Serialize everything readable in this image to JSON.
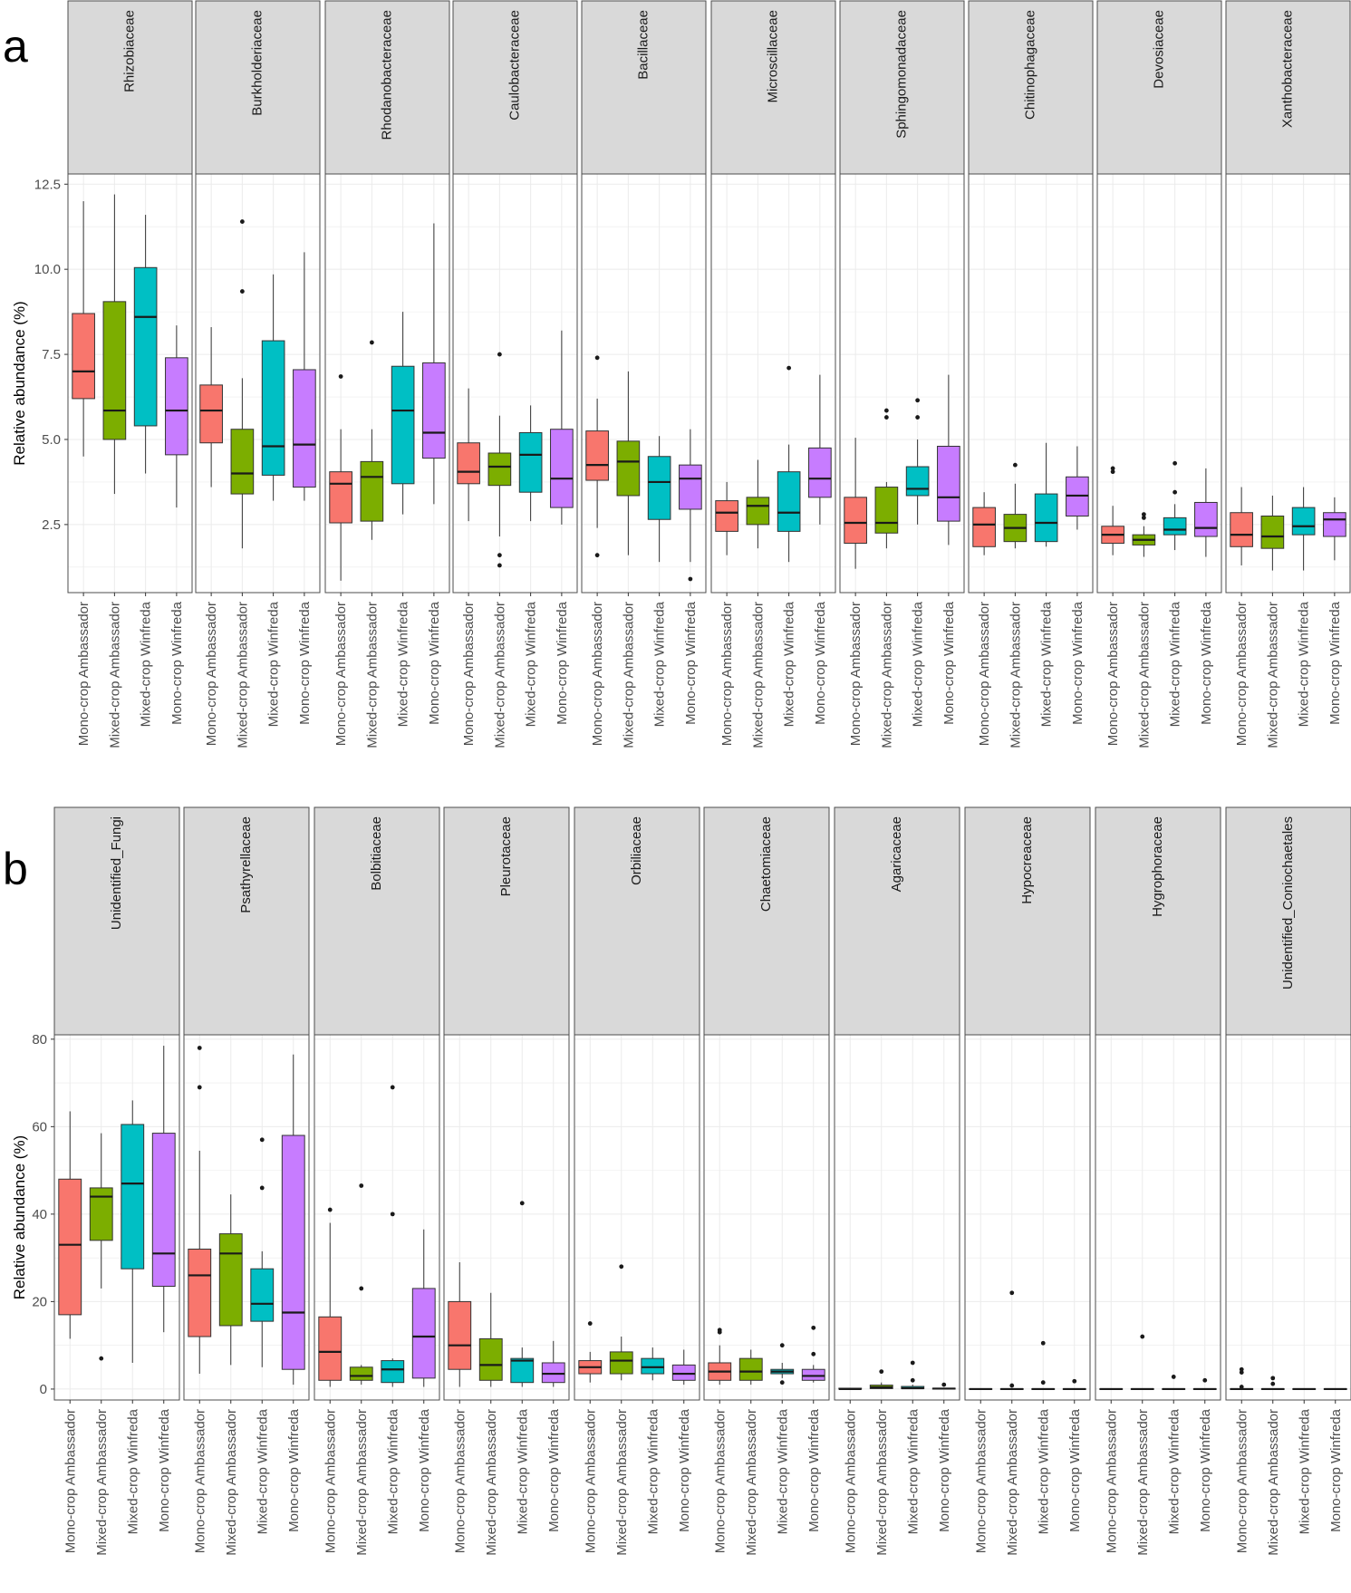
{
  "colors": {
    "Mono-crop Ambassador": "#F8766D",
    "Mixed-crop Ambassador": "#7CAE00",
    "Mixed-crop Winfreda": "#00BFC4",
    "Mono-crop Winfreda": "#C77CFF",
    "strip": "#d9d9d9",
    "grid": "#ebebeb"
  },
  "chart_data": [
    {
      "type": "box",
      "panel_label": "a",
      "ylabel": "Relative abundance (%)",
      "ylim": [
        0.5,
        12.8
      ],
      "yticks": [
        2.5,
        5.0,
        7.5,
        10.0,
        12.5
      ],
      "ytick_labels": [
        "2.5",
        "5.0",
        "7.5",
        "10.0",
        "12.5"
      ],
      "categories": [
        "Mono-crop Ambassador",
        "Mixed-crop Ambassador",
        "Mixed-crop Winfreda",
        "Mono-crop Winfreda"
      ],
      "facets": [
        {
          "name": "Rhizobiaceae",
          "boxes": [
            {
              "lo": 4.5,
              "q1": 6.2,
              "med": 7.0,
              "q3": 8.7,
              "hi": 12.0,
              "out": []
            },
            {
              "lo": 3.4,
              "q1": 5.0,
              "med": 5.85,
              "q3": 9.05,
              "hi": 12.2,
              "out": []
            },
            {
              "lo": 4.0,
              "q1": 5.4,
              "med": 8.6,
              "q3": 10.05,
              "hi": 11.6,
              "out": []
            },
            {
              "lo": 3.0,
              "q1": 4.55,
              "med": 5.85,
              "q3": 7.4,
              "hi": 8.35,
              "out": []
            }
          ]
        },
        {
          "name": "Burkholderiaceae",
          "boxes": [
            {
              "lo": 3.6,
              "q1": 4.9,
              "med": 5.85,
              "q3": 6.6,
              "hi": 8.3,
              "out": []
            },
            {
              "lo": 1.8,
              "q1": 3.4,
              "med": 4.0,
              "q3": 5.3,
              "hi": 6.8,
              "out": [
                9.35,
                11.4
              ]
            },
            {
              "lo": 3.2,
              "q1": 3.95,
              "med": 4.8,
              "q3": 7.9,
              "hi": 9.85,
              "out": []
            },
            {
              "lo": 3.2,
              "q1": 3.6,
              "med": 4.85,
              "q3": 7.05,
              "hi": 10.5,
              "out": []
            }
          ]
        },
        {
          "name": "Rhodanobacteraceae",
          "boxes": [
            {
              "lo": 0.85,
              "q1": 2.55,
              "med": 3.7,
              "q3": 4.05,
              "hi": 5.3,
              "out": [
                6.85
              ]
            },
            {
              "lo": 2.05,
              "q1": 2.6,
              "med": 3.9,
              "q3": 4.35,
              "hi": 5.3,
              "out": [
                7.85
              ]
            },
            {
              "lo": 2.8,
              "q1": 3.7,
              "med": 5.85,
              "q3": 7.15,
              "hi": 8.75,
              "out": []
            },
            {
              "lo": 3.1,
              "q1": 4.45,
              "med": 5.2,
              "q3": 7.25,
              "hi": 11.35,
              "out": []
            }
          ]
        },
        {
          "name": "Caulobacteraceae",
          "boxes": [
            {
              "lo": 2.6,
              "q1": 3.7,
              "med": 4.05,
              "q3": 4.9,
              "hi": 6.5,
              "out": []
            },
            {
              "lo": 2.15,
              "q1": 3.65,
              "med": 4.2,
              "q3": 4.6,
              "hi": 5.7,
              "out": [
                7.5,
                1.6,
                1.3
              ]
            },
            {
              "lo": 2.6,
              "q1": 3.45,
              "med": 4.55,
              "q3": 5.2,
              "hi": 6.0,
              "out": []
            },
            {
              "lo": 2.5,
              "q1": 3.0,
              "med": 3.85,
              "q3": 5.3,
              "hi": 8.2,
              "out": []
            }
          ]
        },
        {
          "name": "Bacillaceae",
          "boxes": [
            {
              "lo": 2.4,
              "q1": 3.8,
              "med": 4.25,
              "q3": 5.25,
              "hi": 6.2,
              "out": [
                7.4,
                1.6
              ]
            },
            {
              "lo": 1.6,
              "q1": 3.35,
              "med": 4.35,
              "q3": 4.95,
              "hi": 7.0,
              "out": []
            },
            {
              "lo": 1.4,
              "q1": 2.65,
              "med": 3.75,
              "q3": 4.5,
              "hi": 5.1,
              "out": []
            },
            {
              "lo": 1.4,
              "q1": 2.95,
              "med": 3.85,
              "q3": 4.25,
              "hi": 5.3,
              "out": [
                0.9
              ]
            }
          ]
        },
        {
          "name": "Microscillaceae",
          "boxes": [
            {
              "lo": 1.6,
              "q1": 2.3,
              "med": 2.85,
              "q3": 3.2,
              "hi": 3.75,
              "out": []
            },
            {
              "lo": 1.8,
              "q1": 2.5,
              "med": 3.05,
              "q3": 3.3,
              "hi": 4.4,
              "out": []
            },
            {
              "lo": 1.4,
              "q1": 2.3,
              "med": 2.85,
              "q3": 4.05,
              "hi": 4.85,
              "out": [
                7.1
              ]
            },
            {
              "lo": 2.5,
              "q1": 3.3,
              "med": 3.85,
              "q3": 4.75,
              "hi": 6.9,
              "out": []
            }
          ]
        },
        {
          "name": "Sphingomonadaceae",
          "boxes": [
            {
              "lo": 1.2,
              "q1": 1.95,
              "med": 2.55,
              "q3": 3.3,
              "hi": 5.05,
              "out": []
            },
            {
              "lo": 1.8,
              "q1": 2.25,
              "med": 2.55,
              "q3": 3.6,
              "hi": 3.75,
              "out": [
                5.85,
                5.65
              ]
            },
            {
              "lo": 2.5,
              "q1": 3.35,
              "med": 3.55,
              "q3": 4.2,
              "hi": 5.0,
              "out": [
                6.15,
                5.65
              ]
            },
            {
              "lo": 1.9,
              "q1": 2.6,
              "med": 3.3,
              "q3": 4.8,
              "hi": 6.9,
              "out": []
            }
          ]
        },
        {
          "name": "Chitinophagaceae",
          "boxes": [
            {
              "lo": 1.6,
              "q1": 1.85,
              "med": 2.5,
              "q3": 3.0,
              "hi": 3.45,
              "out": []
            },
            {
              "lo": 1.8,
              "q1": 2.0,
              "med": 2.4,
              "q3": 2.8,
              "hi": 3.7,
              "out": [
                4.25
              ]
            },
            {
              "lo": 1.85,
              "q1": 2.0,
              "med": 2.55,
              "q3": 3.4,
              "hi": 4.9,
              "out": []
            },
            {
              "lo": 2.35,
              "q1": 2.75,
              "med": 3.35,
              "q3": 3.9,
              "hi": 4.8,
              "out": []
            }
          ]
        },
        {
          "name": "Devosiaceae",
          "boxes": [
            {
              "lo": 1.6,
              "q1": 1.95,
              "med": 2.2,
              "q3": 2.45,
              "hi": 3.05,
              "out": [
                4.15,
                4.05
              ]
            },
            {
              "lo": 1.55,
              "q1": 1.9,
              "med": 2.05,
              "q3": 2.2,
              "hi": 2.45,
              "out": [
                2.8,
                2.7
              ]
            },
            {
              "lo": 1.75,
              "q1": 2.2,
              "med": 2.35,
              "q3": 2.7,
              "hi": 3.1,
              "out": [
                4.3,
                3.45
              ]
            },
            {
              "lo": 1.55,
              "q1": 2.15,
              "med": 2.4,
              "q3": 3.15,
              "hi": 4.15,
              "out": []
            }
          ]
        },
        {
          "name": "Xanthobacteraceae",
          "boxes": [
            {
              "lo": 1.3,
              "q1": 1.85,
              "med": 2.2,
              "q3": 2.85,
              "hi": 3.6,
              "out": []
            },
            {
              "lo": 1.15,
              "q1": 1.8,
              "med": 2.15,
              "q3": 2.75,
              "hi": 3.35,
              "out": []
            },
            {
              "lo": 1.15,
              "q1": 2.2,
              "med": 2.45,
              "q3": 3.0,
              "hi": 3.6,
              "out": []
            },
            {
              "lo": 1.45,
              "q1": 2.15,
              "med": 2.65,
              "q3": 2.85,
              "hi": 3.3,
              "out": []
            }
          ]
        }
      ]
    },
    {
      "type": "box",
      "panel_label": "b",
      "ylabel": "Relative abundance (%)",
      "ylim": [
        -2.5,
        81
      ],
      "yticks": [
        0,
        20,
        40,
        60,
        80
      ],
      "ytick_labels": [
        "0",
        "20",
        "40",
        "60",
        "80"
      ],
      "categories": [
        "Mono-crop Ambassador",
        "Mixed-crop Ambassador",
        "Mixed-crop Winfreda",
        "Mono-crop Winfreda"
      ],
      "facets": [
        {
          "name": "Unidentified_Fungi",
          "boxes": [
            {
              "lo": 11.5,
              "q1": 17.0,
              "med": 33.0,
              "q3": 48.0,
              "hi": 63.5,
              "out": []
            },
            {
              "lo": 23.0,
              "q1": 34.0,
              "med": 44.0,
              "q3": 46.0,
              "hi": 58.5,
              "out": [
                7.0
              ]
            },
            {
              "lo": 6.0,
              "q1": 27.5,
              "med": 47.0,
              "q3": 60.5,
              "hi": 66.0,
              "out": []
            },
            {
              "lo": 13.0,
              "q1": 23.5,
              "med": 31.0,
              "q3": 58.5,
              "hi": 78.5,
              "out": []
            }
          ]
        },
        {
          "name": "Psathyrellaceae",
          "boxes": [
            {
              "lo": 3.5,
              "q1": 12.0,
              "med": 26.0,
              "q3": 32.0,
              "hi": 54.5,
              "out": [
                78.0,
                69.0
              ]
            },
            {
              "lo": 5.5,
              "q1": 14.5,
              "med": 31.0,
              "q3": 35.5,
              "hi": 44.5,
              "out": []
            },
            {
              "lo": 5.0,
              "q1": 15.5,
              "med": 19.5,
              "q3": 27.5,
              "hi": 31.5,
              "out": [
                57.0,
                46.0
              ]
            },
            {
              "lo": 1.0,
              "q1": 4.5,
              "med": 17.5,
              "q3": 58.0,
              "hi": 76.5,
              "out": []
            }
          ]
        },
        {
          "name": "Bolbitiaceae",
          "boxes": [
            {
              "lo": 0.5,
              "q1": 2.0,
              "med": 8.5,
              "q3": 16.5,
              "hi": 38.0,
              "out": [
                41.0
              ]
            },
            {
              "lo": 1.0,
              "q1": 2.0,
              "med": 3.0,
              "q3": 5.0,
              "hi": 5.5,
              "out": [
                46.5,
                23.0
              ]
            },
            {
              "lo": 0.5,
              "q1": 1.5,
              "med": 4.5,
              "q3": 6.5,
              "hi": 7.0,
              "out": [
                69.0,
                40.0
              ]
            },
            {
              "lo": 0.5,
              "q1": 2.5,
              "med": 12.0,
              "q3": 23.0,
              "hi": 36.5,
              "out": []
            }
          ]
        },
        {
          "name": "Pleurotaceae",
          "boxes": [
            {
              "lo": 0.5,
              "q1": 4.5,
              "med": 10.0,
              "q3": 20.0,
              "hi": 29.0,
              "out": []
            },
            {
              "lo": 0.5,
              "q1": 2.0,
              "med": 5.5,
              "q3": 11.5,
              "hi": 22.0,
              "out": []
            },
            {
              "lo": 0.5,
              "q1": 1.5,
              "med": 6.5,
              "q3": 7.0,
              "hi": 9.5,
              "out": [
                42.5
              ]
            },
            {
              "lo": 0.5,
              "q1": 1.5,
              "med": 3.5,
              "q3": 6.0,
              "hi": 11.0,
              "out": []
            }
          ]
        },
        {
          "name": "Orbiliaceae",
          "boxes": [
            {
              "lo": 1.5,
              "q1": 3.5,
              "med": 5.0,
              "q3": 6.5,
              "hi": 8.5,
              "out": [
                15.0
              ]
            },
            {
              "lo": 2.0,
              "q1": 3.5,
              "med": 6.5,
              "q3": 8.5,
              "hi": 12.0,
              "out": [
                28.0
              ]
            },
            {
              "lo": 2.0,
              "q1": 3.5,
              "med": 5.0,
              "q3": 7.0,
              "hi": 9.5,
              "out": []
            },
            {
              "lo": 1.0,
              "q1": 2.0,
              "med": 3.5,
              "q3": 5.5,
              "hi": 9.0,
              "out": []
            }
          ]
        },
        {
          "name": "Chaetomiaceae",
          "boxes": [
            {
              "lo": 1.0,
              "q1": 2.0,
              "med": 4.0,
              "q3": 6.0,
              "hi": 10.0,
              "out": [
                13.5,
                13.0
              ]
            },
            {
              "lo": 1.0,
              "q1": 2.0,
              "med": 4.0,
              "q3": 7.0,
              "hi": 9.0,
              "out": []
            },
            {
              "lo": 2.5,
              "q1": 3.5,
              "med": 4.0,
              "q3": 4.5,
              "hi": 6.0,
              "out": [
                10.0,
                1.5
              ]
            },
            {
              "lo": 1.5,
              "q1": 2.0,
              "med": 3.0,
              "q3": 4.5,
              "hi": 5.5,
              "out": [
                14.0,
                8.0
              ]
            }
          ]
        },
        {
          "name": "Agaricaceae",
          "boxes": [
            {
              "lo": 0.0,
              "q1": 0.0,
              "med": 0.0,
              "q3": 0.2,
              "hi": 0.2,
              "out": []
            },
            {
              "lo": 0.0,
              "q1": 0.1,
              "med": 0.4,
              "q3": 0.9,
              "hi": 1.5,
              "out": [
                4.0
              ]
            },
            {
              "lo": 0.0,
              "q1": 0.1,
              "med": 0.2,
              "q3": 0.6,
              "hi": 1.0,
              "out": [
                6.0,
                2.0
              ]
            },
            {
              "lo": 0.0,
              "q1": 0.0,
              "med": 0.1,
              "q3": 0.2,
              "hi": 0.3,
              "out": [
                1.0
              ]
            }
          ]
        },
        {
          "name": "Hypocreaceae",
          "boxes": [
            {
              "lo": 0.0,
              "q1": 0.0,
              "med": 0.0,
              "q3": 0.1,
              "hi": 0.1,
              "out": []
            },
            {
              "lo": 0.0,
              "q1": 0.0,
              "med": 0.0,
              "q3": 0.1,
              "hi": 0.1,
              "out": [
                22.0,
                0.8
              ]
            },
            {
              "lo": 0.0,
              "q1": 0.0,
              "med": 0.0,
              "q3": 0.1,
              "hi": 0.1,
              "out": [
                10.5,
                1.5
              ]
            },
            {
              "lo": 0.0,
              "q1": 0.0,
              "med": 0.0,
              "q3": 0.1,
              "hi": 0.1,
              "out": [
                1.8
              ]
            }
          ]
        },
        {
          "name": "Hygrophoraceae",
          "boxes": [
            {
              "lo": 0.0,
              "q1": 0.0,
              "med": 0.0,
              "q3": 0.1,
              "hi": 0.1,
              "out": []
            },
            {
              "lo": 0.0,
              "q1": 0.0,
              "med": 0.0,
              "q3": 0.1,
              "hi": 0.1,
              "out": [
                12.0
              ]
            },
            {
              "lo": 0.0,
              "q1": 0.0,
              "med": 0.0,
              "q3": 0.1,
              "hi": 0.1,
              "out": [
                2.8
              ]
            },
            {
              "lo": 0.0,
              "q1": 0.0,
              "med": 0.0,
              "q3": 0.1,
              "hi": 0.1,
              "out": [
                2.0
              ]
            }
          ]
        },
        {
          "name": "Unidentified_Coniochaetales",
          "boxes": [
            {
              "lo": 0.0,
              "q1": 0.0,
              "med": 0.0,
              "q3": 0.1,
              "hi": 0.1,
              "out": [
                4.5,
                3.8,
                0.5
              ]
            },
            {
              "lo": 0.0,
              "q1": 0.0,
              "med": 0.0,
              "q3": 0.1,
              "hi": 0.1,
              "out": [
                2.5,
                1.2
              ]
            },
            {
              "lo": 0.0,
              "q1": 0.0,
              "med": 0.0,
              "q3": 0.1,
              "hi": 0.1,
              "out": []
            },
            {
              "lo": 0.0,
              "q1": 0.0,
              "med": 0.0,
              "q3": 0.1,
              "hi": 0.1,
              "out": []
            }
          ]
        }
      ]
    }
  ]
}
